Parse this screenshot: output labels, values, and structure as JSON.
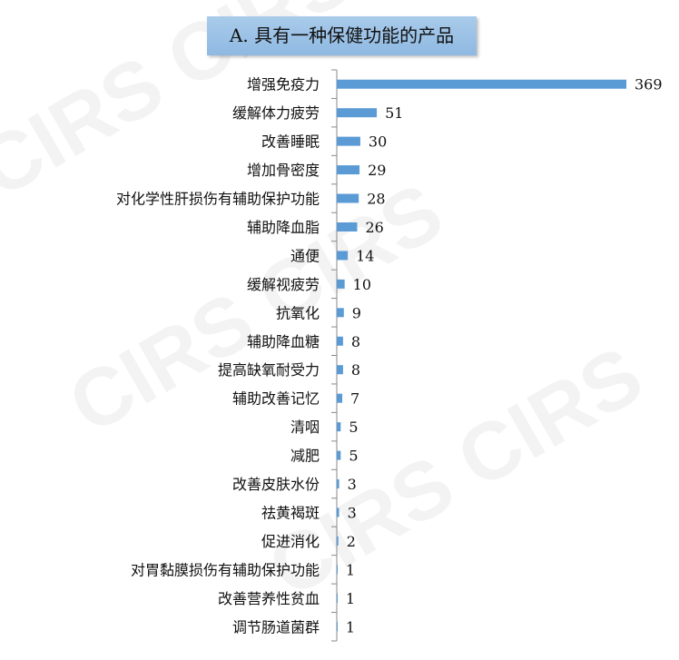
{
  "chart_data": {
    "type": "bar",
    "orientation": "horizontal",
    "title": "A. 具有一种保健功能的产品",
    "categories": [
      "增强免疫力",
      "缓解体力疲劳",
      "改善睡眠",
      "增加骨密度",
      "对化学性肝损伤有辅助保护功能",
      "辅助降血脂",
      "通便",
      "缓解视疲劳",
      "抗氧化",
      "辅助降血糖",
      "提高缺氧耐受力",
      "辅助改善记忆",
      "清咽",
      "减肥",
      "改善皮肤水份",
      "祛黄褐斑",
      "促进消化",
      "对胃黏膜损伤有辅助保护功能",
      "改善营养性贫血",
      "调节肠道菌群"
    ],
    "values": [
      369,
      51,
      30,
      29,
      28,
      26,
      14,
      10,
      9,
      8,
      8,
      7,
      5,
      5,
      3,
      3,
      2,
      1,
      1,
      1
    ],
    "xlim": [
      0,
      369
    ],
    "grid": false,
    "legend": "none",
    "bar_color": "#5b9bd5",
    "watermark": "CIRS"
  }
}
